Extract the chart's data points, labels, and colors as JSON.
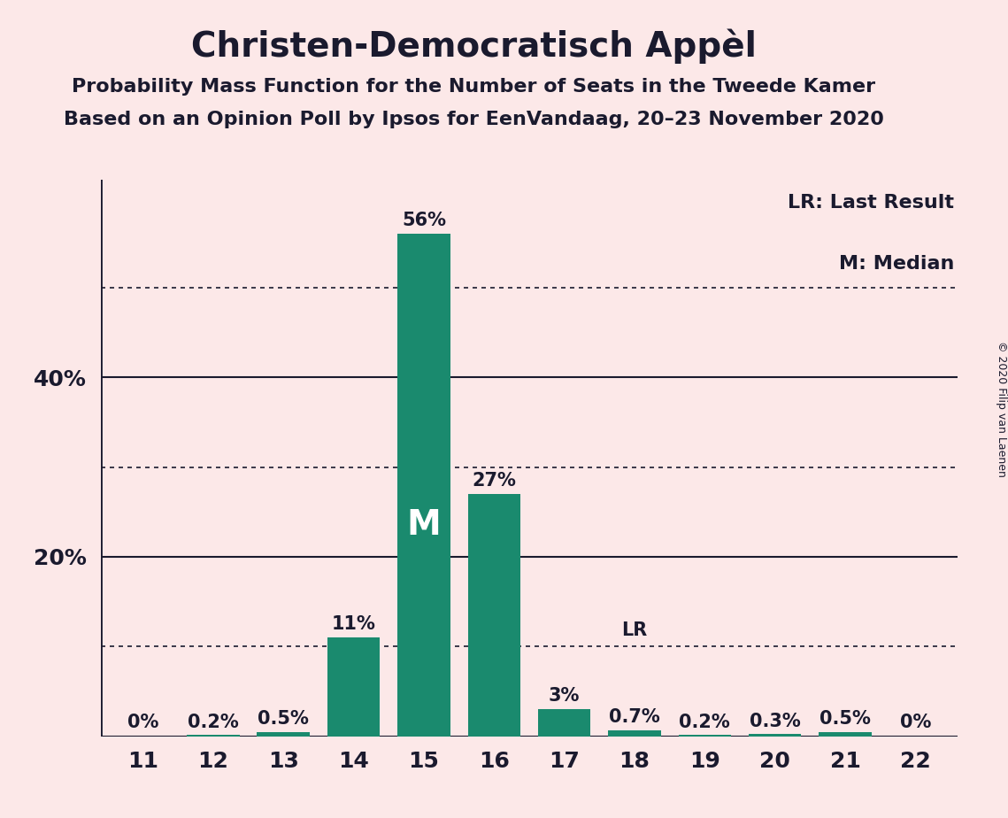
{
  "title": "Christen-Democratisch Appèl",
  "subtitle1": "Probability Mass Function for the Number of Seats in the Tweede Kamer",
  "subtitle2": "Based on an Opinion Poll by Ipsos for EenVandaag, 20–23 November 2020",
  "copyright": "© 2020 Filip van Laenen",
  "categories": [
    11,
    12,
    13,
    14,
    15,
    16,
    17,
    18,
    19,
    20,
    21,
    22
  ],
  "values": [
    0.0,
    0.2,
    0.5,
    11.0,
    56.0,
    27.0,
    3.0,
    0.7,
    0.2,
    0.3,
    0.5,
    0.0
  ],
  "bar_color": "#1a8a6e",
  "background_color": "#fce8e8",
  "text_color": "#1a1a2e",
  "labels": [
    "0%",
    "0.2%",
    "0.5%",
    "11%",
    "56%",
    "27%",
    "3%",
    "0.7%",
    "0.2%",
    "0.3%",
    "0.5%",
    "0%"
  ],
  "median_seat": 15,
  "lr_seat": 18,
  "ylim": [
    0,
    62
  ],
  "solid_yticks": [
    0,
    20,
    40
  ],
  "dotted_yticks": [
    10,
    30,
    50
  ],
  "title_fontsize": 28,
  "subtitle_fontsize": 16,
  "label_fontsize": 15,
  "tick_fontsize": 18,
  "legend_fontsize": 16,
  "copyright_fontsize": 9
}
